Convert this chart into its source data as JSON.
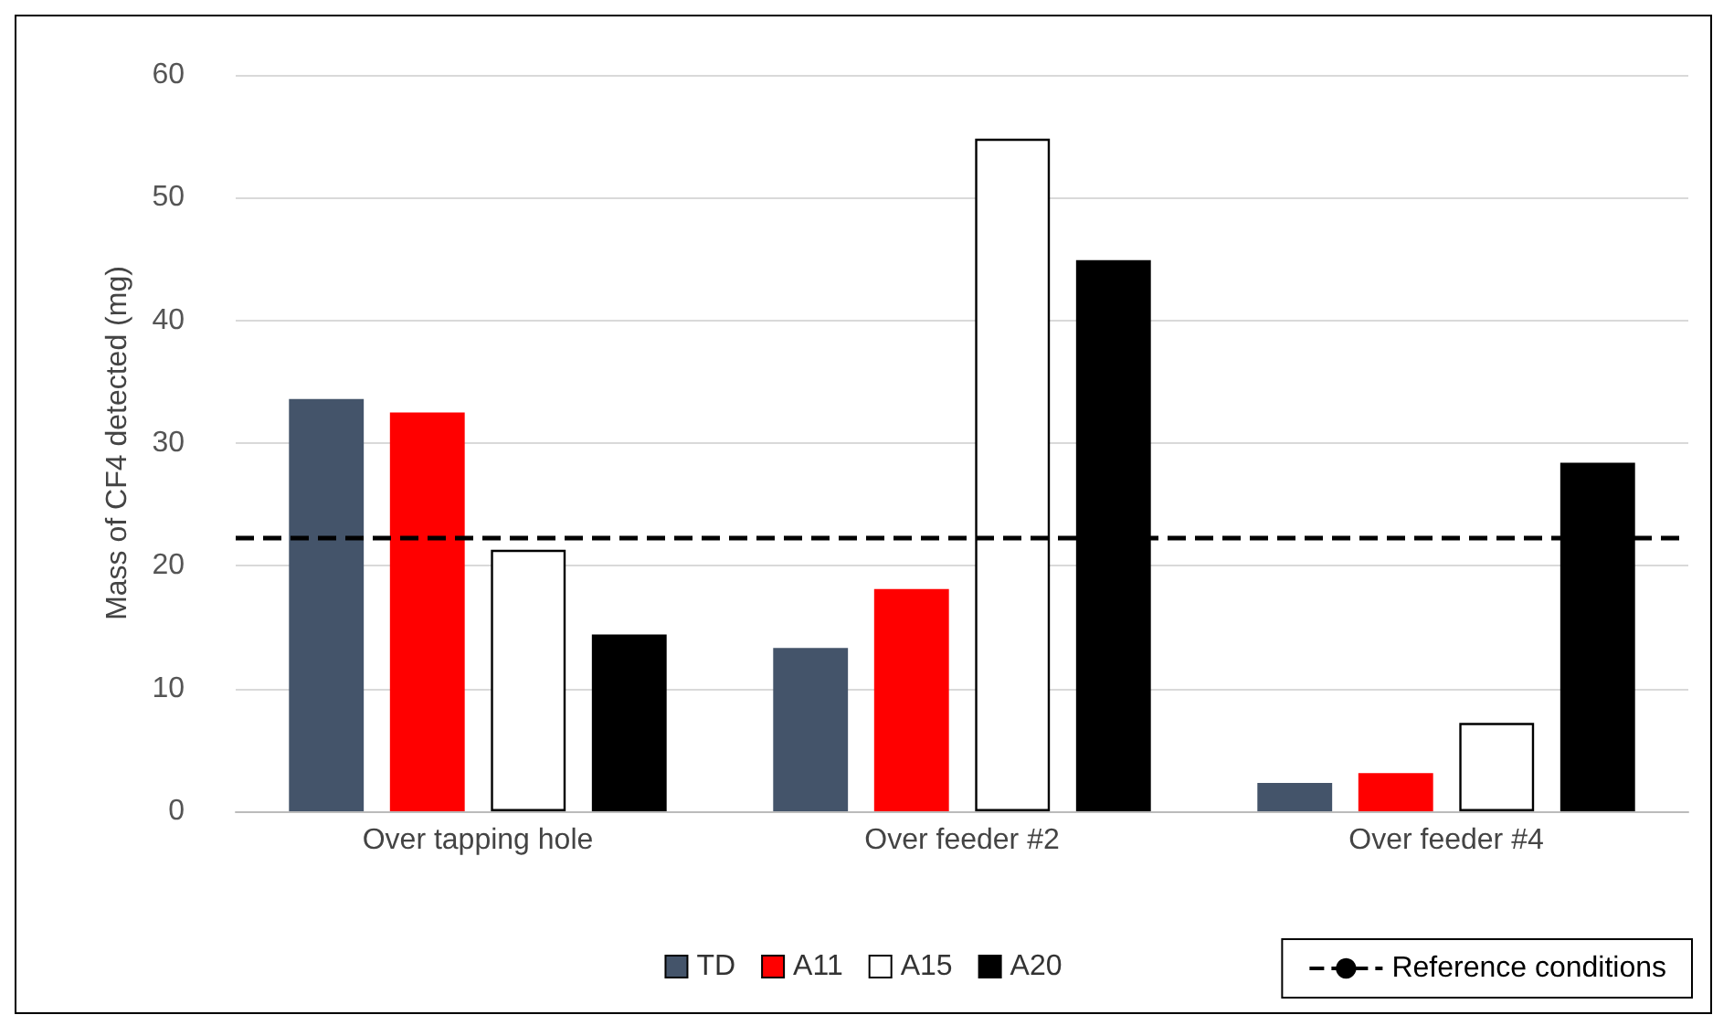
{
  "chart_data": {
    "type": "bar",
    "ylabel": "Mass of CF4 detected (mg)",
    "categories": [
      "Over tapping hole",
      "Over feeder #2",
      "Over feeder #4"
    ],
    "series": [
      {
        "name": "TD",
        "color": "#44546a",
        "values": [
          33.6,
          13.3,
          2.3
        ]
      },
      {
        "name": "A11",
        "color": "#ff0000",
        "values": [
          32.5,
          18.1,
          3.1
        ]
      },
      {
        "name": "A15",
        "color": "#ffffff",
        "values": [
          21.3,
          54.8,
          7.2
        ]
      },
      {
        "name": "A20",
        "color": "#000000",
        "values": [
          14.4,
          44.9,
          28.4
        ]
      }
    ],
    "ylim": [
      0,
      60
    ],
    "yticks": [
      0,
      10,
      20,
      30,
      40,
      50,
      60
    ],
    "grid": "y",
    "legend": "bottom",
    "ref_lines": [
      {
        "axis": "y",
        "value": 22.3,
        "label": "Reference conditions",
        "color": "#000000",
        "line_style": "dashed"
      }
    ]
  }
}
